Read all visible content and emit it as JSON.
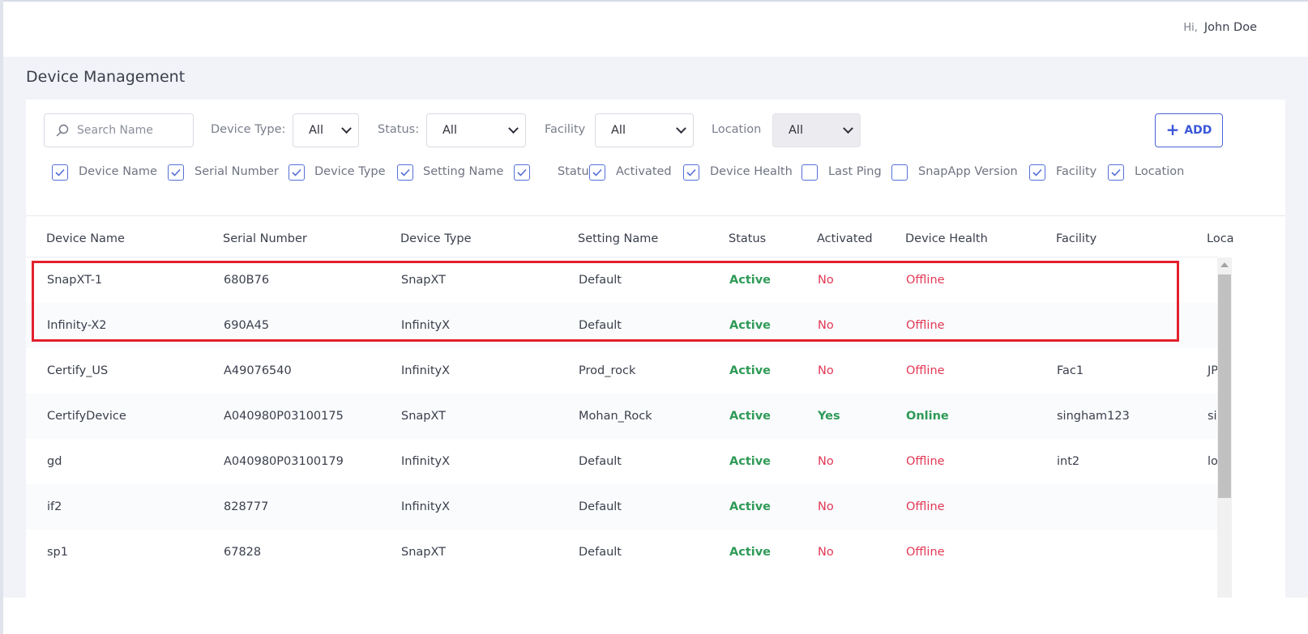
{
  "header": {
    "greeting": "Hi,",
    "user_name": "John Doe"
  },
  "page": {
    "title": "Device Management"
  },
  "filters": {
    "search_placeholder": "Search Name",
    "device_type_label": "Device Type:",
    "device_type_value": "All",
    "status_label": "Status:",
    "status_value": "All",
    "facility_label": "Facility",
    "facility_value": "All",
    "location_label": "Location",
    "location_value": "All",
    "add_label": "ADD"
  },
  "column_toggles": [
    {
      "label": "Device Name",
      "checked": true
    },
    {
      "label": "Serial Number",
      "checked": true
    },
    {
      "label": "Device Type",
      "checked": true
    },
    {
      "label": "Setting Name",
      "checked": true
    },
    {
      "label": "Status",
      "checked": true
    },
    {
      "label": "Activated",
      "checked": true
    },
    {
      "label": "Device Health",
      "checked": true
    },
    {
      "label": "Last Ping",
      "checked": false
    },
    {
      "label": "SnapApp Version",
      "checked": false
    },
    {
      "label": "Facility",
      "checked": true
    },
    {
      "label": "Location",
      "checked": true
    }
  ],
  "table": {
    "headers": [
      "Device Name",
      "Serial Number",
      "Device Type",
      "Setting Name",
      "Status",
      "Activated",
      "Device Health",
      "Facility",
      "Loca"
    ],
    "rows": [
      {
        "name": "SnapXT-1",
        "serial": "680B76",
        "type": "SnapXT",
        "setting": "Default",
        "status": "Active",
        "activated": "No",
        "health": "Offline",
        "facility": "",
        "location": ""
      },
      {
        "name": "Infinity-X2",
        "serial": "690A45",
        "type": "InfinityX",
        "setting": "Default",
        "status": "Active",
        "activated": "No",
        "health": "Offline",
        "facility": "",
        "location": ""
      },
      {
        "name": "Certify_US",
        "serial": "A49076540",
        "type": "InfinityX",
        "setting": "Prod_rock",
        "status": "Active",
        "activated": "No",
        "health": "Offline",
        "facility": "Fac1",
        "location": "JP"
      },
      {
        "name": "CertifyDevice",
        "serial": "A040980P03100175",
        "type": "SnapXT",
        "setting": "Mohan_Rock",
        "status": "Active",
        "activated": "Yes",
        "health": "Online",
        "facility": "singham123",
        "location": "sir"
      },
      {
        "name": "gd",
        "serial": "A040980P03100179",
        "type": "InfinityX",
        "setting": "Default",
        "status": "Active",
        "activated": "No",
        "health": "Offline",
        "facility": "int2",
        "location": "lo"
      },
      {
        "name": "if2",
        "serial": "828777",
        "type": "InfinityX",
        "setting": "Default",
        "status": "Active",
        "activated": "No",
        "health": "Offline",
        "facility": "",
        "location": ""
      },
      {
        "name": "sp1",
        "serial": "67828",
        "type": "SnapXT",
        "setting": "Default",
        "status": "Active",
        "activated": "No",
        "health": "Offline",
        "facility": "",
        "location": ""
      }
    ]
  },
  "colors": {
    "accent": "#3b57d8",
    "positive": "#2f9a57",
    "negative": "#e23955",
    "highlight_box": "#e3202d"
  }
}
